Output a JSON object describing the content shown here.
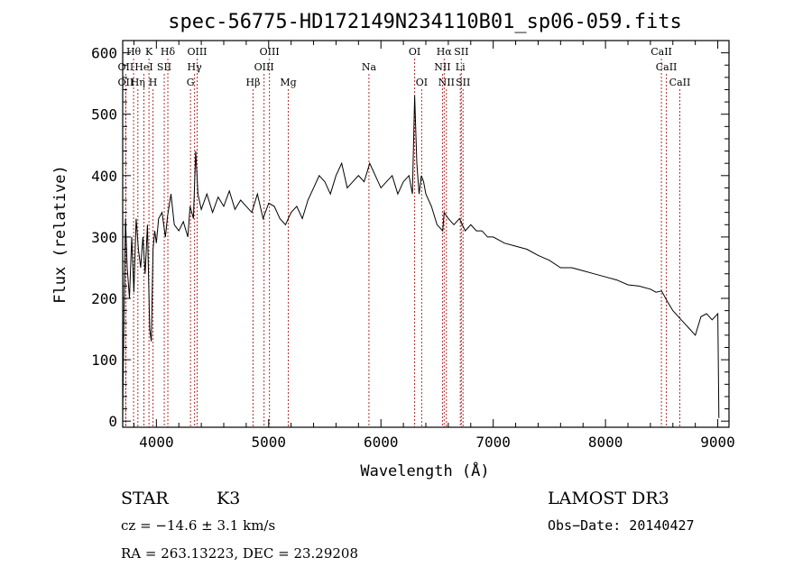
{
  "chart_data": {
    "type": "line",
    "title": "spec-56775-HD172149N234110B01_sp06-059.fits",
    "xlabel": "Wavelength (Å)",
    "ylabel": "Flux (relative)",
    "xlim": [
      3700,
      9100
    ],
    "ylim": [
      -10,
      620
    ],
    "x_ticks": [
      {
        "value": 4000,
        "label": "4000"
      },
      {
        "value": 5000,
        "label": "5000"
      },
      {
        "value": 6000,
        "label": "6000"
      },
      {
        "value": 7000,
        "label": "7000"
      },
      {
        "value": 8000,
        "label": "8000"
      },
      {
        "value": 9000,
        "label": "9000"
      }
    ],
    "y_ticks": [
      {
        "value": 0,
        "label": "0"
      },
      {
        "value": 100,
        "label": "100"
      },
      {
        "value": 200,
        "label": "200"
      },
      {
        "value": 300,
        "label": "300"
      },
      {
        "value": 400,
        "label": "400"
      },
      {
        "value": 500,
        "label": "500"
      },
      {
        "value": 600,
        "label": "600"
      }
    ],
    "grid": false,
    "line_color": "#000000",
    "marker_color": "#b03030",
    "spectrum": {
      "x": [
        3700,
        3712,
        3725,
        3740,
        3760,
        3780,
        3800,
        3820,
        3840,
        3860,
        3880,
        3900,
        3920,
        3940,
        3955,
        3970,
        3985,
        4000,
        4020,
        4050,
        4080,
        4100,
        4130,
        4160,
        4200,
        4240,
        4280,
        4300,
        4330,
        4350,
        4370,
        4400,
        4450,
        4500,
        4550,
        4600,
        4650,
        4700,
        4750,
        4800,
        4850,
        4900,
        4950,
        5000,
        5050,
        5100,
        5150,
        5200,
        5250,
        5300,
        5350,
        5400,
        5450,
        5500,
        5550,
        5600,
        5650,
        5700,
        5750,
        5800,
        5850,
        5900,
        5950,
        6000,
        6050,
        6100,
        6150,
        6200,
        6250,
        6280,
        6300,
        6320,
        6340,
        6360,
        6380,
        6400,
        6450,
        6500,
        6550,
        6563,
        6600,
        6650,
        6700,
        6750,
        6800,
        6850,
        6900,
        6950,
        7000,
        7100,
        7200,
        7300,
        7400,
        7500,
        7600,
        7700,
        7800,
        7900,
        8000,
        8100,
        8200,
        8300,
        8400,
        8450,
        8500,
        8550,
        8600,
        8650,
        8700,
        8750,
        8800,
        8850,
        8900,
        8950,
        9000,
        9010
      ],
      "y": [
        5,
        190,
        330,
        250,
        200,
        300,
        210,
        330,
        280,
        250,
        300,
        240,
        320,
        150,
        130,
        280,
        310,
        290,
        330,
        340,
        300,
        335,
        370,
        320,
        310,
        325,
        300,
        350,
        330,
        440,
        370,
        345,
        370,
        340,
        365,
        350,
        375,
        345,
        360,
        350,
        340,
        370,
        330,
        355,
        350,
        330,
        320,
        340,
        350,
        330,
        360,
        380,
        400,
        390,
        370,
        400,
        420,
        380,
        390,
        400,
        390,
        420,
        400,
        380,
        390,
        400,
        370,
        390,
        400,
        370,
        530,
        420,
        370,
        400,
        390,
        370,
        350,
        320,
        310,
        340,
        330,
        320,
        330,
        310,
        320,
        310,
        310,
        300,
        300,
        290,
        285,
        280,
        270,
        262,
        250,
        250,
        245,
        240,
        235,
        230,
        222,
        220,
        215,
        210,
        212,
        195,
        180,
        170,
        160,
        150,
        140,
        170,
        175,
        165,
        175,
        5
      ]
    },
    "lines": [
      {
        "x": 3727,
        "label": "OII",
        "row": 2
      },
      {
        "x": 3727,
        "label": "OII",
        "row": 3
      },
      {
        "x": 3797,
        "label": "Hθ",
        "row": 1
      },
      {
        "x": 3835,
        "label": "Hη",
        "row": 3
      },
      {
        "x": 3889,
        "label": "HeI",
        "row": 2
      },
      {
        "x": 3934,
        "label": "K",
        "row": 1
      },
      {
        "x": 3970,
        "label": "H",
        "row": 3
      },
      {
        "x": 4070,
        "label": "SII",
        "row": 2
      },
      {
        "x": 4102,
        "label": "Hδ",
        "row": 1
      },
      {
        "x": 4304,
        "label": "G",
        "row": 3
      },
      {
        "x": 4340,
        "label": "Hγ",
        "row": 2
      },
      {
        "x": 4363,
        "label": "OIII",
        "row": 1
      },
      {
        "x": 4861,
        "label": "Hβ",
        "row": 3
      },
      {
        "x": 4959,
        "label": "OIII",
        "row": 2
      },
      {
        "x": 5007,
        "label": "OIII",
        "row": 1
      },
      {
        "x": 5175,
        "label": "Mg",
        "row": 3
      },
      {
        "x": 5893,
        "label": "Na",
        "row": 2
      },
      {
        "x": 6300,
        "label": "OI",
        "row": 1
      },
      {
        "x": 6363,
        "label": "OI",
        "row": 3
      },
      {
        "x": 6548,
        "label": "NII",
        "row": 2
      },
      {
        "x": 6563,
        "label": "Hα",
        "row": 1
      },
      {
        "x": 6583,
        "label": "NII",
        "row": 3
      },
      {
        "x": 6707,
        "label": "Li",
        "row": 2
      },
      {
        "x": 6716,
        "label": "SII",
        "row": 1
      },
      {
        "x": 6731,
        "label": "SII",
        "row": 3
      },
      {
        "x": 8498,
        "label": "CaII",
        "row": 1
      },
      {
        "x": 8542,
        "label": "CaII",
        "row": 2
      },
      {
        "x": 8662,
        "label": "CaII",
        "row": 3
      }
    ]
  },
  "info": {
    "object_class": "STAR",
    "subclass": "K3",
    "survey": "LAMOST DR3",
    "cz": "cz = −14.6 ± 3.1 km/s",
    "obs_date": "Obs−Date: 20140427",
    "coords": "RA = 263.13223, DEC =  23.29208"
  }
}
